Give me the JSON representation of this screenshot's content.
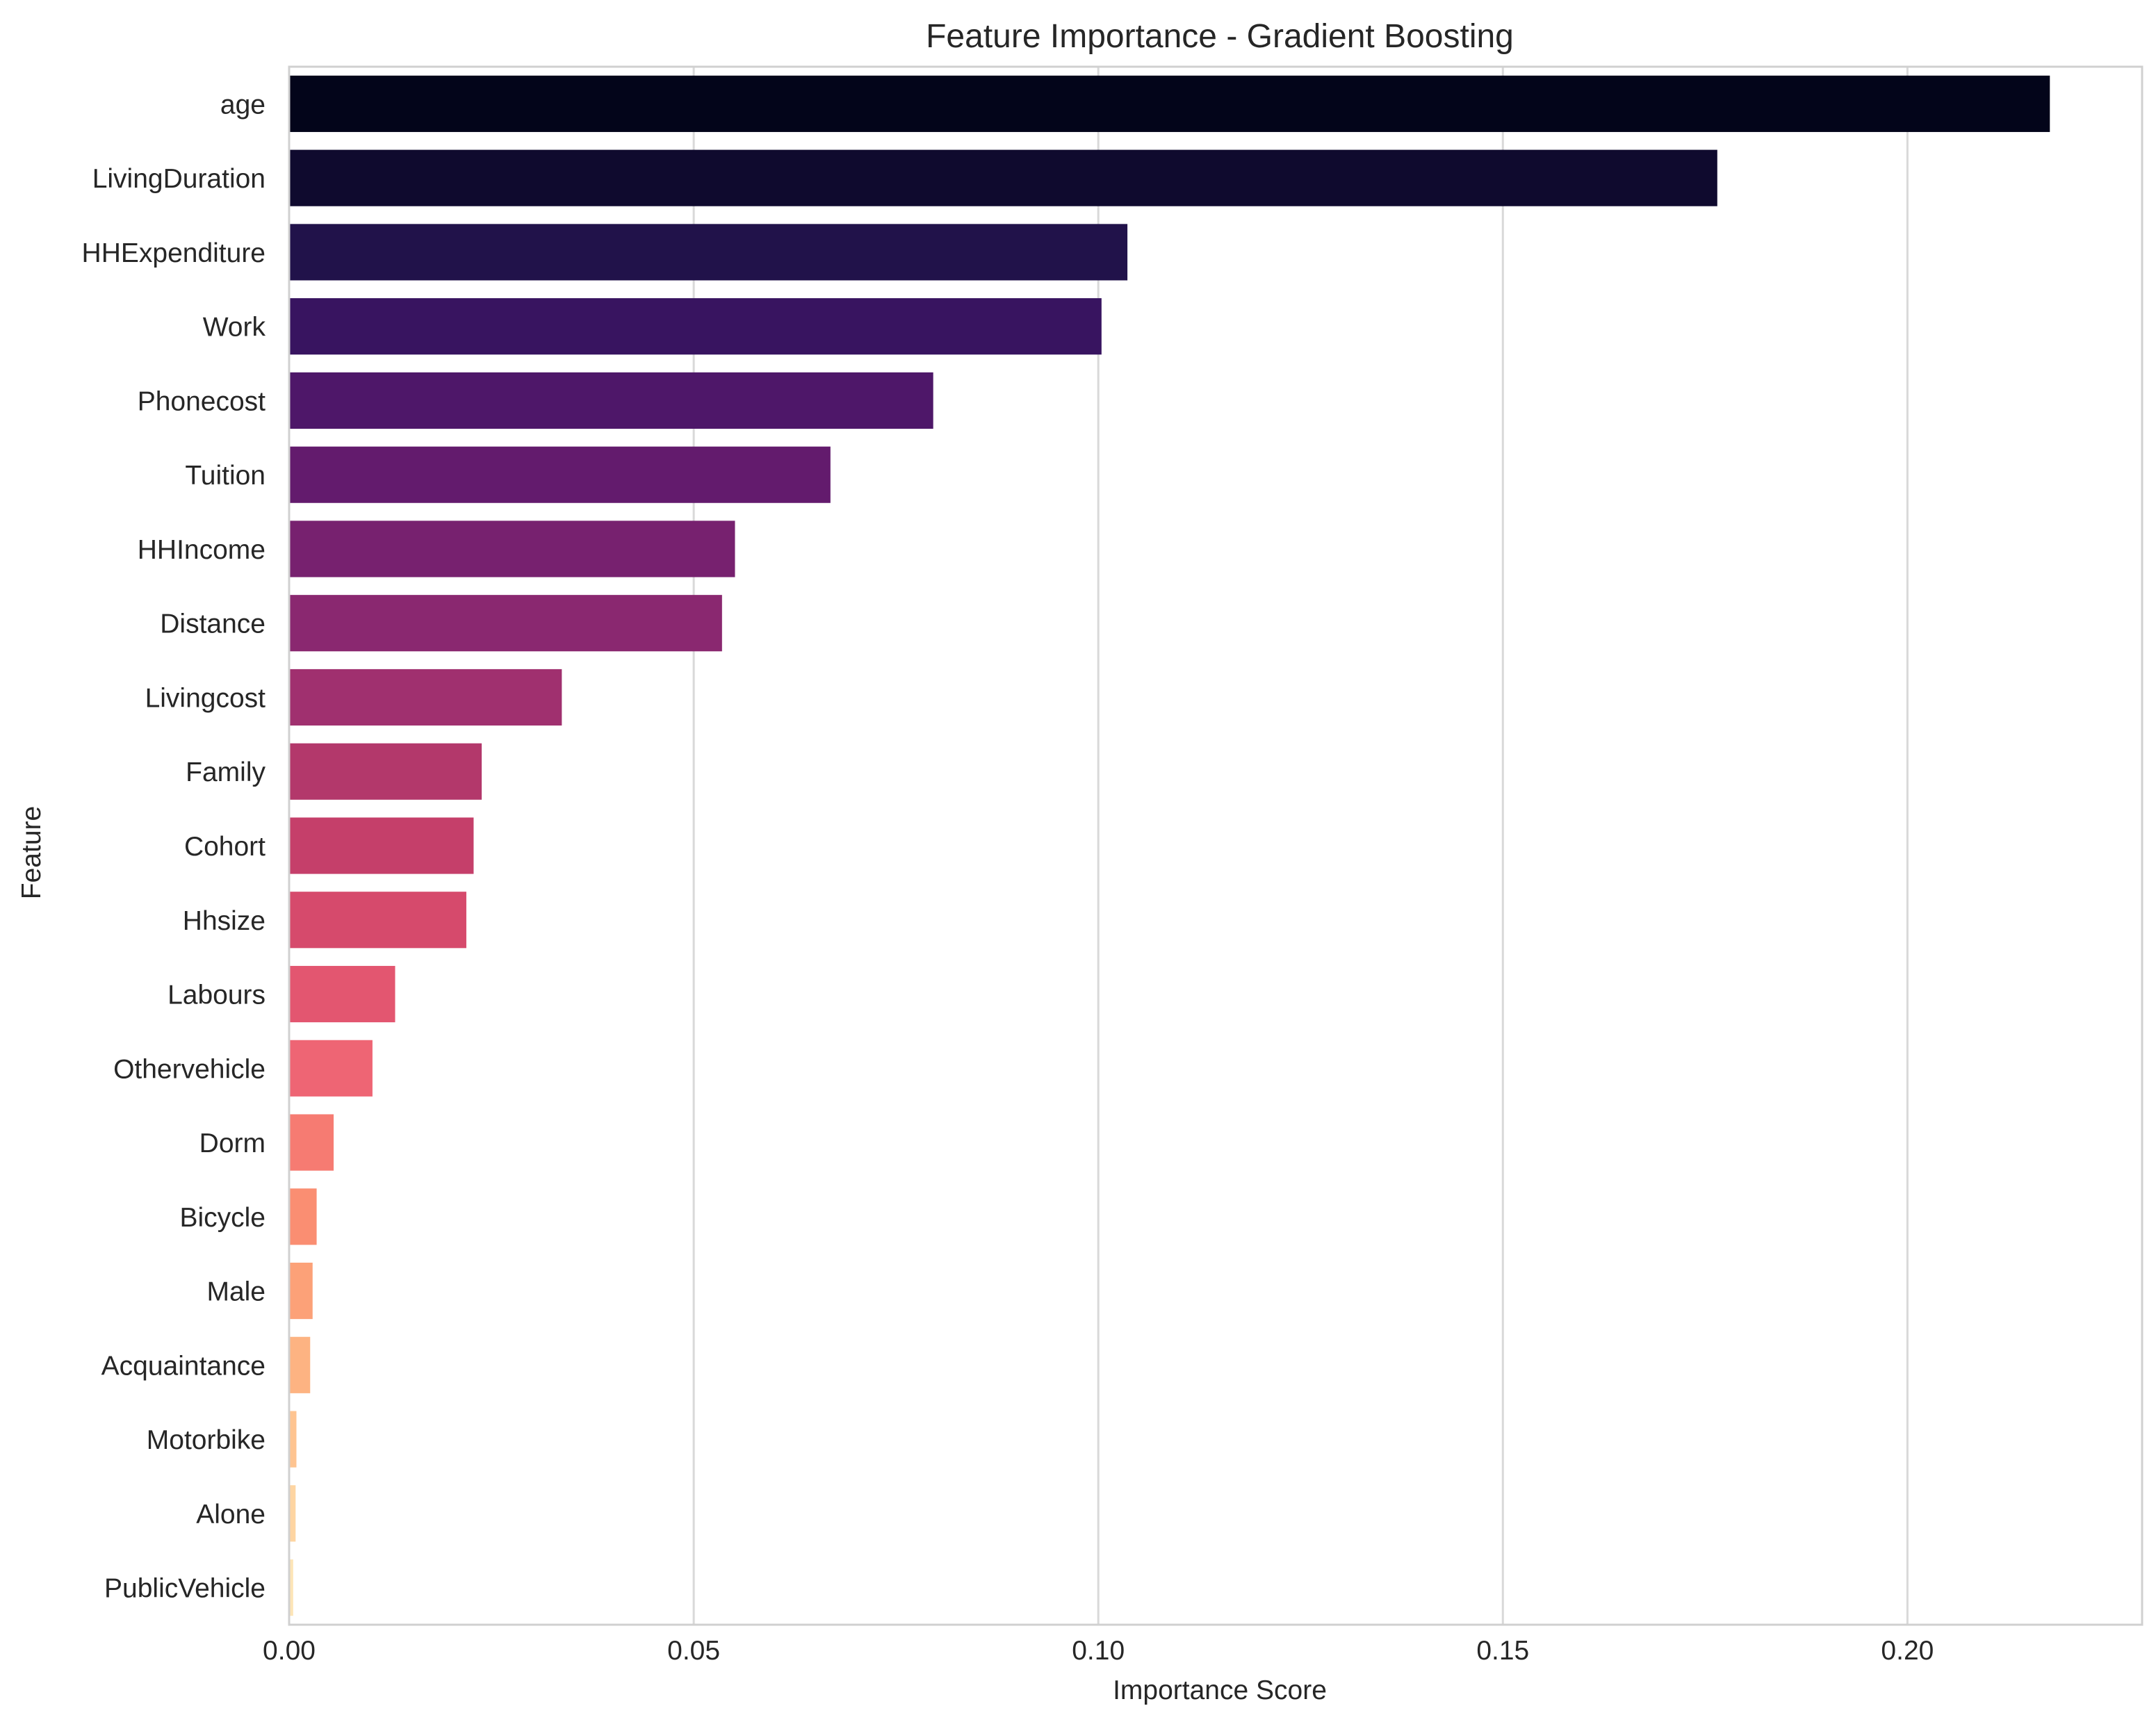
{
  "chart_data": {
    "type": "bar",
    "orientation": "horizontal",
    "title": "Feature Importance - Gradient Boosting",
    "xlabel": "Importance Score",
    "ylabel": "Feature",
    "xlim": [
      0,
      0.229
    ],
    "grid": true,
    "xticks": [
      {
        "value": 0.0,
        "label": "0.00"
      },
      {
        "value": 0.05,
        "label": "0.05"
      },
      {
        "value": 0.1,
        "label": "0.10"
      },
      {
        "value": 0.15,
        "label": "0.15"
      },
      {
        "value": 0.2,
        "label": "0.20"
      }
    ],
    "bars": [
      {
        "label": "age",
        "value": 0.2176,
        "color": "#03051a"
      },
      {
        "label": "LivingDuration",
        "value": 0.1765,
        "color": "#0f0a2e"
      },
      {
        "label": "HHExpenditure",
        "value": 0.1036,
        "color": "#21124a"
      },
      {
        "label": "Work",
        "value": 0.1004,
        "color": "#381460"
      },
      {
        "label": "Phonecost",
        "value": 0.0796,
        "color": "#4e1769"
      },
      {
        "label": "Tuition",
        "value": 0.0669,
        "color": "#631b6d"
      },
      {
        "label": "HHIncome",
        "value": 0.0551,
        "color": "#77216f"
      },
      {
        "label": "Distance",
        "value": 0.0535,
        "color": "#8a2870"
      },
      {
        "label": "Livingcost",
        "value": 0.0337,
        "color": "#a0306f"
      },
      {
        "label": "Family",
        "value": 0.0238,
        "color": "#b3386b"
      },
      {
        "label": "Cohort",
        "value": 0.0228,
        "color": "#c53f6a"
      },
      {
        "label": "Hhsize",
        "value": 0.0219,
        "color": "#d64a6c"
      },
      {
        "label": "Labours",
        "value": 0.0131,
        "color": "#e35670"
      },
      {
        "label": "Othervehicle",
        "value": 0.0103,
        "color": "#ee6574"
      },
      {
        "label": "Dorm",
        "value": 0.0055,
        "color": "#f67b72"
      },
      {
        "label": "Bicycle",
        "value": 0.0034,
        "color": "#fa8e72"
      },
      {
        "label": "Male",
        "value": 0.0029,
        "color": "#fca178"
      },
      {
        "label": "Acquaintance",
        "value": 0.0026,
        "color": "#fdb382"
      },
      {
        "label": "Motorbike",
        "value": 0.0009,
        "color": "#fec491"
      },
      {
        "label": "Alone",
        "value": 0.0008,
        "color": "#fed5a2"
      },
      {
        "label": "PublicVehicle",
        "value": 0.0005,
        "color": "#fde5b7"
      }
    ]
  }
}
